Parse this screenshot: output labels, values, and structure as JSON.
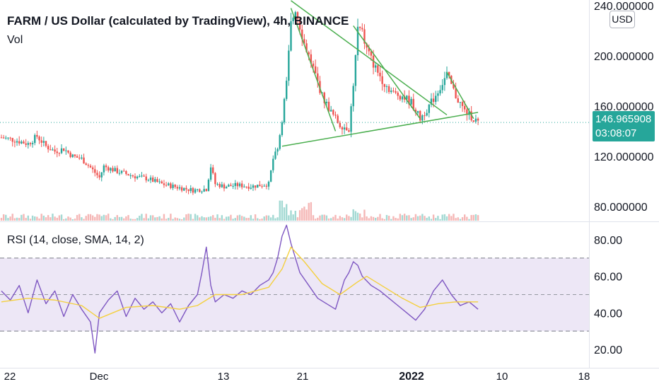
{
  "header": {
    "title": "FARM / US Dollar (calculated by TradingView), 4h, BINANCE",
    "vol_label": "Vol",
    "rsi_label": "RSI (14, close, SMA, 14, 2)",
    "currency_button": "USD"
  },
  "price_tag": {
    "price": "146.965908",
    "countdown": "03:08:07"
  },
  "colors": {
    "up": "#26a69a",
    "down": "#ef5350",
    "trendline": "#4caf50",
    "rsi_line": "#7e57c2",
    "rsi_ma": "#f4d03f",
    "rsi_band": "#ede7f6"
  },
  "chart_data": [
    {
      "type": "candlestick",
      "title": "FARM / US Dollar (calculated by TradingView), 4h, BINANCE",
      "x_ticks": [
        "22",
        "Dec",
        "13",
        "21",
        "2022",
        "10",
        "18"
      ],
      "y_ticks": [
        "80.000000",
        "120.000000",
        "160.000000",
        "200.000000",
        "240.000000"
      ],
      "ylim": [
        72,
        242
      ],
      "last_price": 146.965908,
      "close_path": [
        [
          0,
          135
        ],
        [
          3,
          133
        ],
        [
          6,
          130
        ],
        [
          8,
          136
        ],
        [
          10,
          128
        ],
        [
          12,
          124
        ],
        [
          14,
          126
        ],
        [
          16,
          120
        ],
        [
          18,
          118
        ],
        [
          20,
          111
        ],
        [
          22,
          103
        ],
        [
          23,
          112
        ],
        [
          26,
          108
        ],
        [
          28,
          106
        ],
        [
          30,
          104
        ],
        [
          33,
          102
        ],
        [
          36,
          98
        ],
        [
          40,
          95
        ],
        [
          43,
          93
        ],
        [
          46,
          94
        ],
        [
          47,
          112
        ],
        [
          48,
          98
        ],
        [
          50,
          96
        ],
        [
          53,
          97
        ],
        [
          56,
          96
        ],
        [
          58,
          97
        ],
        [
          60,
          98
        ],
        [
          61,
          118
        ],
        [
          62,
          125
        ],
        [
          63,
          150
        ],
        [
          64,
          178
        ],
        [
          65,
          225
        ],
        [
          66,
          238
        ],
        [
          68,
          210
        ],
        [
          70,
          190
        ],
        [
          72,
          168
        ],
        [
          74,
          155
        ],
        [
          76,
          145
        ],
        [
          78,
          142
        ],
        [
          79,
          176
        ],
        [
          80,
          222
        ],
        [
          81,
          218
        ],
        [
          82,
          205
        ],
        [
          84,
          190
        ],
        [
          86,
          178
        ],
        [
          88,
          170
        ],
        [
          90,
          168
        ],
        [
          92,
          163
        ],
        [
          94,
          150
        ],
        [
          96,
          160
        ],
        [
          98,
          172
        ],
        [
          100,
          185
        ],
        [
          102,
          168
        ],
        [
          104,
          156
        ],
        [
          106,
          150
        ],
        [
          107,
          147
        ]
      ],
      "trendlines": [
        [
          [
            63,
            128
          ],
          [
            107,
            155
          ]
        ],
        [
          [
            65,
            244
          ],
          [
            100,
            153
          ]
        ],
        [
          [
            65,
            238
          ],
          [
            75,
            140
          ]
        ],
        [
          [
            79,
            224
          ],
          [
            94,
            150
          ]
        ],
        [
          [
            100,
            187
          ],
          [
            106,
            150
          ]
        ]
      ]
    },
    {
      "type": "line",
      "title": "RSI (14, close, SMA, 14, 2)",
      "y_ticks": [
        "20.00",
        "40.00",
        "60.00",
        "80.00"
      ],
      "ylim": [
        17,
        92
      ],
      "band": [
        30,
        70
      ],
      "midline": 50,
      "series": [
        {
          "name": "RSI",
          "values": [
            [
              0,
              52
            ],
            [
              2,
              47
            ],
            [
              4,
              55
            ],
            [
              6,
              40
            ],
            [
              8,
              58
            ],
            [
              10,
              45
            ],
            [
              12,
              52
            ],
            [
              14,
              38
            ],
            [
              16,
              50
            ],
            [
              18,
              42
            ],
            [
              20,
              35
            ],
            [
              21,
              18
            ],
            [
              22,
              40
            ],
            [
              24,
              47
            ],
            [
              26,
              52
            ],
            [
              28,
              38
            ],
            [
              30,
              48
            ],
            [
              32,
              42
            ],
            [
              34,
              46
            ],
            [
              36,
              40
            ],
            [
              38,
              45
            ],
            [
              40,
              35
            ],
            [
              42,
              44
            ],
            [
              44,
              50
            ],
            [
              45,
              62
            ],
            [
              46,
              76
            ],
            [
              47,
              55
            ],
            [
              48,
              46
            ],
            [
              50,
              50
            ],
            [
              52,
              48
            ],
            [
              54,
              52
            ],
            [
              56,
              50
            ],
            [
              58,
              55
            ],
            [
              60,
              58
            ],
            [
              61,
              62
            ],
            [
              62,
              70
            ],
            [
              63,
              82
            ],
            [
              64,
              88
            ],
            [
              65,
              78
            ],
            [
              67,
              62
            ],
            [
              69,
              55
            ],
            [
              71,
              48
            ],
            [
              73,
              45
            ],
            [
              75,
              42
            ],
            [
              77,
              58
            ],
            [
              78,
              62
            ],
            [
              79,
              68
            ],
            [
              80,
              66
            ],
            [
              81,
              60
            ],
            [
              83,
              55
            ],
            [
              85,
              52
            ],
            [
              87,
              48
            ],
            [
              89,
              44
            ],
            [
              91,
              40
            ],
            [
              93,
              36
            ],
            [
              95,
              42
            ],
            [
              97,
              52
            ],
            [
              99,
              58
            ],
            [
              101,
              50
            ],
            [
              103,
              44
            ],
            [
              105,
              46
            ],
            [
              107,
              42
            ]
          ]
        },
        {
          "name": "SMA",
          "values": [
            [
              0,
              46
            ],
            [
              6,
              48
            ],
            [
              12,
              47
            ],
            [
              18,
              44
            ],
            [
              22,
              37
            ],
            [
              28,
              43
            ],
            [
              34,
              44
            ],
            [
              40,
              42
            ],
            [
              44,
              44
            ],
            [
              48,
              50
            ],
            [
              54,
              50
            ],
            [
              60,
              54
            ],
            [
              63,
              64
            ],
            [
              65,
              76
            ],
            [
              68,
              68
            ],
            [
              72,
              56
            ],
            [
              76,
              50
            ],
            [
              80,
              57
            ],
            [
              82,
              60
            ],
            [
              86,
              54
            ],
            [
              90,
              48
            ],
            [
              94,
              43
            ],
            [
              98,
              45
            ],
            [
              102,
              46
            ],
            [
              107,
              46
            ]
          ]
        }
      ]
    }
  ]
}
